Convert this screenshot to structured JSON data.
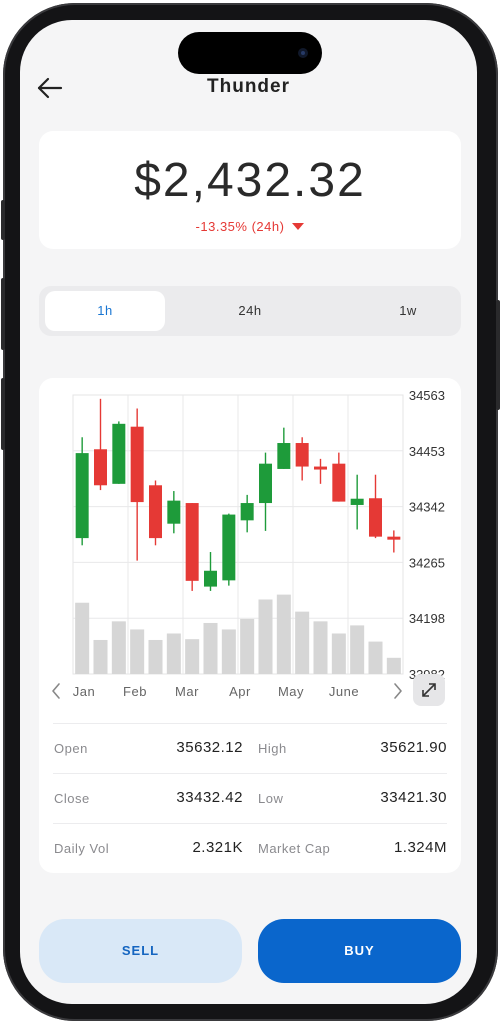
{
  "app": {
    "title": "Thunder"
  },
  "header": {
    "back_icon": "arrow-left-icon"
  },
  "price": {
    "value": "$2,432.32",
    "change": "-13.35% (24h)",
    "change_direction": "down",
    "change_color": "#e53935"
  },
  "timeframes": {
    "selected": "1h",
    "options": [
      "1h",
      "24h",
      "1w"
    ]
  },
  "chart_data": {
    "type": "candlestick",
    "y_ticks": [
      "34563",
      "34453",
      "34342",
      "34265",
      "34198",
      "33982"
    ],
    "x_labels": [
      "Jan",
      "Feb",
      "Mar",
      "Apr",
      "May",
      "June"
    ],
    "prev_icon": "chevron-left-icon",
    "next_icon": "chevron-right-icon",
    "expand_icon": "expand-icon",
    "up_color": "#1e9b3a",
    "down_color": "#e53935",
    "volume_color": "#d6d6d6",
    "ylim": [
      33982,
      34563
    ],
    "candles": [
      {
        "dir": "up",
        "open": 34265,
        "close": 34442,
        "high": 34475,
        "low": 34250
      },
      {
        "dir": "down",
        "open": 34450,
        "close": 34375,
        "high": 34555,
        "low": 34365
      },
      {
        "dir": "up",
        "open": 34378,
        "close": 34503,
        "high": 34508,
        "low": 34378
      },
      {
        "dir": "down",
        "open": 34497,
        "close": 34340,
        "high": 34535,
        "low": 34218
      },
      {
        "dir": "down",
        "open": 34375,
        "close": 34265,
        "high": 34385,
        "low": 34250
      },
      {
        "dir": "up",
        "open": 34295,
        "close": 34343,
        "high": 34363,
        "low": 34275
      },
      {
        "dir": "down",
        "open": 34338,
        "close": 34176,
        "high": 34338,
        "low": 34155
      },
      {
        "dir": "up",
        "open": 34164,
        "close": 34197,
        "high": 34236,
        "low": 34155
      },
      {
        "dir": "up",
        "open": 34177,
        "close": 34314,
        "high": 34316,
        "low": 34166
      },
      {
        "dir": "up",
        "open": 34302,
        "close": 34338,
        "high": 34355,
        "low": 34277
      },
      {
        "dir": "up",
        "open": 34338,
        "close": 34420,
        "high": 34443,
        "low": 34280
      },
      {
        "dir": "up",
        "open": 34409,
        "close": 34463,
        "high": 34495,
        "low": 34409
      },
      {
        "dir": "down",
        "open": 34463,
        "close": 34414,
        "high": 34475,
        "low": 34385
      },
      {
        "dir": "down",
        "open": 34414,
        "close": 34408,
        "high": 34430,
        "low": 34378
      },
      {
        "dir": "down",
        "open": 34420,
        "close": 34341,
        "high": 34443,
        "low": 34341
      },
      {
        "dir": "up",
        "open": 34334,
        "close": 34347,
        "high": 34397,
        "low": 34283
      },
      {
        "dir": "down",
        "open": 34348,
        "close": 34268,
        "high": 34397,
        "low": 34265
      },
      {
        "dir": "down",
        "open": 34268,
        "close": 34262,
        "high": 34281,
        "low": 34235
      }
    ],
    "volumes": [
      0.88,
      0.42,
      0.65,
      0.55,
      0.42,
      0.5,
      0.43,
      0.63,
      0.55,
      0.68,
      0.92,
      0.98,
      0.77,
      0.65,
      0.5,
      0.6,
      0.4,
      0.2
    ]
  },
  "stats": [
    {
      "label1": "Open",
      "value1": "35632.12",
      "label2": "High",
      "value2": "35621.90"
    },
    {
      "label1": "Close",
      "value1": "33432.42",
      "label2": "Low",
      "value2": "33421.30"
    },
    {
      "label1": "Daily Vol",
      "value1": "2.321K",
      "label2": "Market Cap",
      "value2": "1.324M"
    }
  ],
  "actions": {
    "sell": "SELL",
    "buy": "BUY",
    "sell_bg": "#d9e8f7",
    "buy_bg": "#0a66cc"
  }
}
